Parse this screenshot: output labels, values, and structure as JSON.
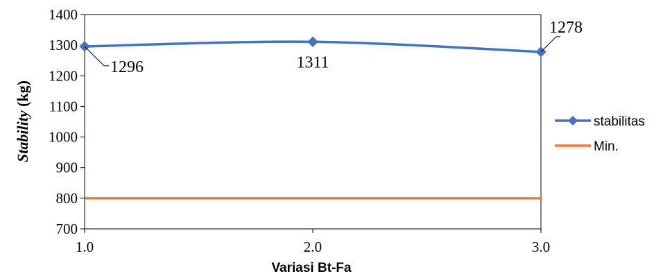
{
  "chart_data": {
    "type": "line",
    "x": [
      1.0,
      2.0,
      3.0
    ],
    "x_tick_labels": [
      "1.0",
      "2.0",
      "3.0"
    ],
    "xlim": [
      1.0,
      3.0
    ],
    "ylim": [
      700,
      1400
    ],
    "y_ticks": [
      700,
      800,
      900,
      1000,
      1100,
      1200,
      1300,
      1400
    ],
    "xlabel": "Variasi Bt-Fa",
    "ylabel_italic": "Stability",
    "ylabel_rest": " (kg)",
    "grid": false,
    "legend_position": "right",
    "series": [
      {
        "name": "stabilitas",
        "values": [
          1296,
          1311,
          1278
        ],
        "data_labels": [
          "1296",
          "1311",
          "1278"
        ],
        "color": "#4472C4",
        "marker": "diamond"
      },
      {
        "name": "Min.",
        "values": [
          800,
          800,
          800
        ],
        "color": "#ED7D31",
        "marker": "none"
      }
    ]
  }
}
